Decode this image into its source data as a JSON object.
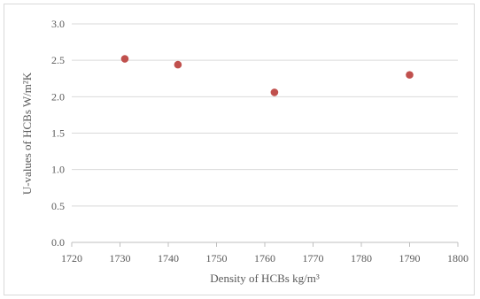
{
  "chart_data": {
    "type": "scatter",
    "title": "",
    "xlabel": "Density of HCBs kg/m³",
    "ylabel": "U-values of HCBs W/m²K",
    "xlim": [
      1720,
      1800
    ],
    "ylim": [
      0.0,
      3.0
    ],
    "x_ticks": [
      "1720",
      "1730",
      "1740",
      "1750",
      "1760",
      "1770",
      "1780",
      "1790",
      "1800"
    ],
    "y_ticks": [
      "0.0",
      "0.5",
      "1.0",
      "1.5",
      "2.0",
      "2.5",
      "3.0"
    ],
    "grid": "horizontal",
    "legend": "none",
    "marker_color": "#c0504d",
    "points": [
      {
        "x": 1731,
        "y": 2.52
      },
      {
        "x": 1742,
        "y": 2.44
      },
      {
        "x": 1762,
        "y": 2.06
      },
      {
        "x": 1790,
        "y": 2.3
      }
    ]
  }
}
